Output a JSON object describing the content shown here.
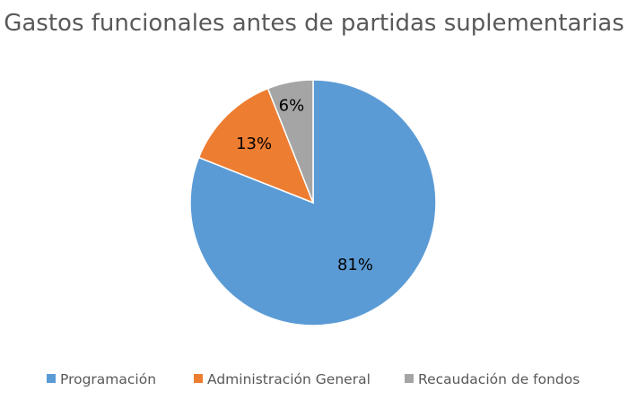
{
  "chart_data": {
    "type": "pie",
    "title": "Gastos funcionales antes de partidas suplementarias",
    "legend_position": "bottom",
    "slices": [
      {
        "label": "Programación",
        "value": 81,
        "data_label": "81%",
        "color": "#5B9BD5"
      },
      {
        "label": "Administración General",
        "value": 13,
        "data_label": "13%",
        "color": "#ED7D31"
      },
      {
        "label": "Recaudación de fondos",
        "value": 6,
        "data_label": "6%",
        "color": "#A5A5A5"
      }
    ]
  }
}
